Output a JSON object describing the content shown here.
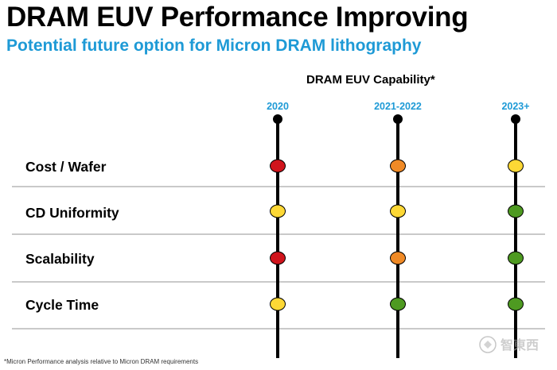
{
  "slide": {
    "title": "DRAM EUV Performance Improving",
    "subtitle": "Potential future option for Micron DRAM lithography",
    "capability_heading": "DRAM EUV Capability*",
    "footnote": "*Micron Performance analysis relative to Micron DRAM requirements"
  },
  "timeline": {
    "years": [
      "2020",
      "2021-2022",
      "2023+"
    ]
  },
  "metrics": [
    {
      "label": "Cost / Wafer",
      "status": [
        "red",
        "orange",
        "yellow"
      ]
    },
    {
      "label": "CD Uniformity",
      "status": [
        "yellow",
        "yellow",
        "green"
      ]
    },
    {
      "label": "Scalability",
      "status": [
        "red",
        "orange",
        "green"
      ]
    },
    {
      "label": "Cycle Time",
      "status": [
        "yellow",
        "green",
        "green"
      ]
    }
  ],
  "colors": {
    "accent_blue": "#1e9ad6",
    "red": "#d0141c",
    "orange": "#f08a26",
    "yellow": "#fdd835",
    "green": "#4e9a21",
    "divider": "#c9c9c9"
  },
  "watermark": {
    "logo_text": "智東西"
  }
}
